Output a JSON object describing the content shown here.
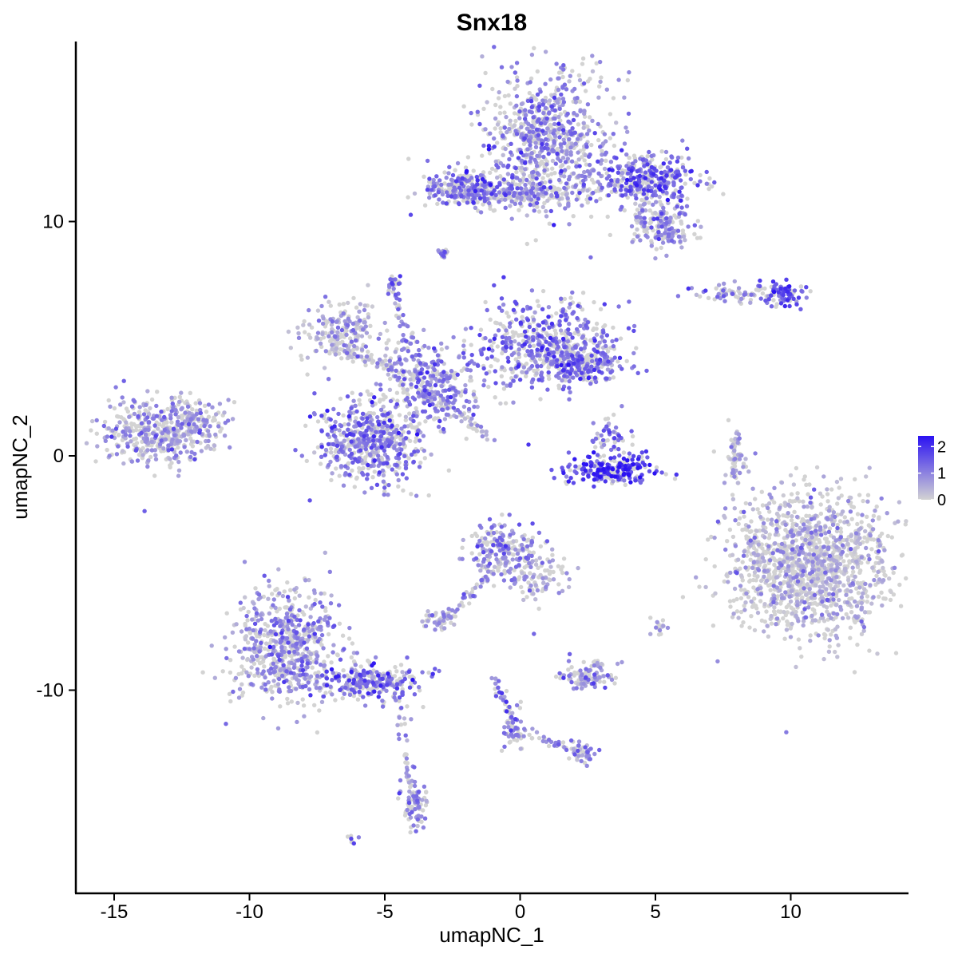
{
  "chart_data": {
    "type": "scatter",
    "title": "Snx18",
    "xlabel": "umapNC_1",
    "ylabel": "umapNC_2",
    "xlim": [
      -16.3,
      14.5
    ],
    "ylim": [
      -18.5,
      17.8
    ],
    "xticks": [
      -15,
      -10,
      -5,
      0,
      5,
      10
    ],
    "xtick_labels": [
      "-15",
      "-10",
      "-5",
      "0",
      "5",
      "10"
    ],
    "yticks": [
      10,
      0,
      -10
    ],
    "ytick_labels": [
      "10",
      "0",
      "-10"
    ],
    "grid": false,
    "legend": {
      "placement": "right",
      "type": "colorbar",
      "ticks": [
        2,
        1,
        0
      ],
      "tick_labels": [
        "2",
        "1",
        "0"
      ],
      "range": [
        0,
        2.4
      ]
    },
    "colors": {
      "low": "#d3d3d3",
      "high": "#2b12f2",
      "axis": "#000000"
    },
    "clusters": [
      {
        "name": "top-right-body",
        "cx": 1.0,
        "cy": 13.6,
        "sx": 1.2,
        "sy": 1.4,
        "n": 700,
        "mean": 0.9
      },
      {
        "name": "top-right-arm",
        "cx": 4.6,
        "cy": 11.8,
        "sx": 1.0,
        "sy": 0.5,
        "n": 350,
        "mean": 1.3
      },
      {
        "name": "top-right-lower-arm",
        "cx": 5.2,
        "cy": 9.9,
        "sx": 0.6,
        "sy": 0.5,
        "n": 180,
        "mean": 0.8
      },
      {
        "name": "top-arm-left",
        "cx": -2.0,
        "cy": 11.4,
        "sx": 0.9,
        "sy": 0.4,
        "n": 220,
        "mean": 1.2
      },
      {
        "name": "top-arm-mid",
        "cx": 0.5,
        "cy": 11.1,
        "sx": 1.0,
        "sy": 0.35,
        "n": 120,
        "mean": 0.6
      },
      {
        "name": "small-10",
        "cx": -2.9,
        "cy": 8.6,
        "sx": 0.15,
        "sy": 0.15,
        "n": 15,
        "mean": 1.2
      },
      {
        "name": "right-strip",
        "cx": 7.8,
        "cy": 6.9,
        "sx": 0.7,
        "sy": 0.2,
        "n": 60,
        "mean": 0.9
      },
      {
        "name": "right-strip-end",
        "cx": 9.7,
        "cy": 6.9,
        "sx": 0.4,
        "sy": 0.25,
        "n": 90,
        "mean": 1.6
      },
      {
        "name": "center-right-wing",
        "cx": 1.0,
        "cy": 4.8,
        "sx": 1.2,
        "sy": 0.9,
        "n": 500,
        "mean": 1.2
      },
      {
        "name": "center-right-tail",
        "cx": 2.3,
        "cy": 3.9,
        "sx": 0.8,
        "sy": 0.4,
        "n": 200,
        "mean": 1.2
      },
      {
        "name": "center-left-wing",
        "cx": -6.6,
        "cy": 5.3,
        "sx": 0.7,
        "sy": 0.6,
        "n": 200,
        "mean": 0.5
      },
      {
        "name": "center-hub",
        "cx": -3.2,
        "cy": 3.2,
        "sx": 1.1,
        "sy": 0.8,
        "n": 300,
        "mean": 1.0
      },
      {
        "name": "center-lower-blob",
        "cx": -5.5,
        "cy": 0.6,
        "sx": 1.0,
        "sy": 0.9,
        "n": 550,
        "mean": 1.1
      },
      {
        "name": "center-top-small",
        "cx": -4.7,
        "cy": 7.3,
        "sx": 0.15,
        "sy": 0.2,
        "n": 25,
        "mean": 1.3
      },
      {
        "name": "left-cluster",
        "cx": -13.3,
        "cy": 1.0,
        "sx": 1.0,
        "sy": 0.7,
        "n": 450,
        "mean": 0.7
      },
      {
        "name": "left-cluster-tip",
        "cx": -11.8,
        "cy": 1.6,
        "sx": 0.5,
        "sy": 0.4,
        "n": 60,
        "mean": 0.8
      },
      {
        "name": "arc-cluster",
        "cx": 3.4,
        "cy": -0.6,
        "sx": 0.8,
        "sy": 0.3,
        "n": 230,
        "mean": 1.8
      },
      {
        "name": "arc-cluster-upper",
        "cx": 3.2,
        "cy": 0.8,
        "sx": 0.4,
        "sy": 0.4,
        "n": 50,
        "mean": 1.3
      },
      {
        "name": "big-right-cluster",
        "cx": 10.7,
        "cy": -4.6,
        "sx": 1.5,
        "sy": 1.5,
        "n": 1400,
        "mean": 0.35
      },
      {
        "name": "thin-vertical",
        "cx": 8.0,
        "cy": -0.2,
        "sx": 0.15,
        "sy": 0.7,
        "n": 40,
        "mean": 0.3
      },
      {
        "name": "lower-left-body",
        "cx": -8.6,
        "cy": -8.1,
        "sx": 1.0,
        "sy": 1.2,
        "n": 650,
        "mean": 0.8
      },
      {
        "name": "lower-left-arm",
        "cx": -5.5,
        "cy": -9.7,
        "sx": 0.9,
        "sy": 0.4,
        "n": 250,
        "mean": 1.2
      },
      {
        "name": "lower-left-stalk",
        "cx": -3.9,
        "cy": -15.0,
        "sx": 0.25,
        "sy": 0.5,
        "n": 80,
        "mean": 0.8
      },
      {
        "name": "lower-center-top",
        "cx": -0.6,
        "cy": -4.0,
        "sx": 0.6,
        "sy": 0.6,
        "n": 200,
        "mean": 1.0
      },
      {
        "name": "lower-center-tail",
        "cx": 0.8,
        "cy": -5.2,
        "sx": 0.5,
        "sy": 0.5,
        "n": 80,
        "mean": 0.6
      },
      {
        "name": "lower-center-left",
        "cx": -3.0,
        "cy": -7.0,
        "sx": 0.3,
        "sy": 0.2,
        "n": 50,
        "mean": 0.7
      },
      {
        "name": "lower-right-small",
        "cx": 2.5,
        "cy": -9.4,
        "sx": 0.5,
        "sy": 0.3,
        "n": 110,
        "mean": 0.7
      },
      {
        "name": "bottom-cross",
        "cx": -0.2,
        "cy": -11.7,
        "sx": 0.2,
        "sy": 0.5,
        "n": 50,
        "mean": 1.0
      },
      {
        "name": "bottom-cross-right",
        "cx": 2.3,
        "cy": -12.7,
        "sx": 0.25,
        "sy": 0.2,
        "n": 40,
        "mean": 1.0
      },
      {
        "name": "tiny-right-1",
        "cx": 5.1,
        "cy": -7.3,
        "sx": 0.15,
        "sy": 0.2,
        "n": 15,
        "mean": 0.8
      },
      {
        "name": "tiny-bottom",
        "cx": -6.2,
        "cy": -16.4,
        "sx": 0.1,
        "sy": 0.1,
        "n": 8,
        "mean": 1.3
      }
    ],
    "bridges": [
      {
        "from": [
          -4.7,
          7.0
        ],
        "to": [
          -3.4,
          2.5
        ],
        "n": 60,
        "mean": 1.0
      },
      {
        "from": [
          -3.0,
          2.5
        ],
        "to": [
          -1.2,
          0.8
        ],
        "n": 50,
        "mean": 0.5
      },
      {
        "from": [
          -2.5,
          11.2
        ],
        "to": [
          1.5,
          11.2
        ],
        "n": 80,
        "mean": 0.9
      },
      {
        "from": [
          7.9,
          0.8
        ],
        "to": [
          7.9,
          -1.0
        ],
        "n": 30,
        "mean": 0.3
      },
      {
        "from": [
          -4.5,
          -10.6
        ],
        "to": [
          -3.9,
          -14.8
        ],
        "n": 40,
        "mean": 0.8
      },
      {
        "from": [
          -1.0,
          -5.0
        ],
        "to": [
          -2.7,
          -7.0
        ],
        "n": 40,
        "mean": 0.8
      },
      {
        "from": [
          -0.9,
          -9.4
        ],
        "to": [
          -0.3,
          -11.6
        ],
        "n": 30,
        "mean": 1.0
      },
      {
        "from": [
          0.2,
          -11.8
        ],
        "to": [
          2.2,
          -12.6
        ],
        "n": 30,
        "mean": 0.9
      },
      {
        "from": [
          -7.1,
          4.6
        ],
        "to": [
          -3.8,
          3.5
        ],
        "n": 60,
        "mean": 0.5
      }
    ]
  }
}
